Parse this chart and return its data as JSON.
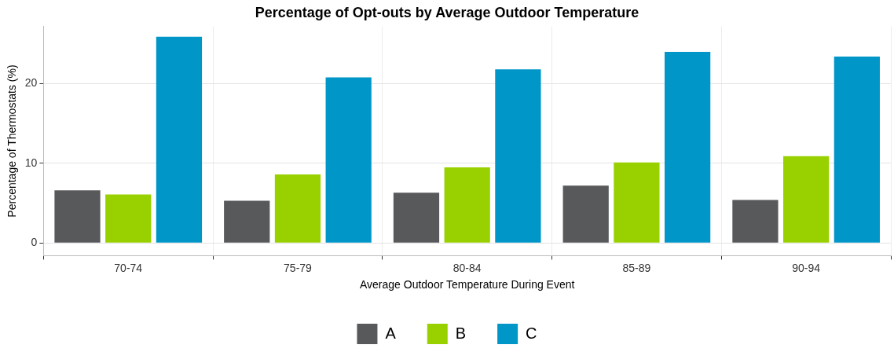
{
  "chart_data": {
    "type": "bar",
    "title": "Percentage of Opt-outs by Average Outdoor Temperature",
    "xlabel": "Average Outdoor Temperature During Event",
    "ylabel": "Percentage of Thermostats (%)",
    "categories": [
      "70-74",
      "75-79",
      "80-84",
      "85-89",
      "90-94"
    ],
    "series": [
      {
        "name": "A",
        "color": "#58595b",
        "values": [
          6.6,
          5.3,
          6.3,
          7.2,
          5.4
        ]
      },
      {
        "name": "B",
        "color": "#99d100",
        "values": [
          6.1,
          8.6,
          9.5,
          10.1,
          10.9
        ]
      },
      {
        "name": "C",
        "color": "#0096c8",
        "values": [
          25.9,
          20.8,
          21.8,
          24.0,
          23.4
        ]
      }
    ],
    "ylim": [
      -1.6,
      27.2
    ],
    "yticks": [
      0,
      10,
      20
    ],
    "grid": true,
    "legend": "bottom"
  }
}
